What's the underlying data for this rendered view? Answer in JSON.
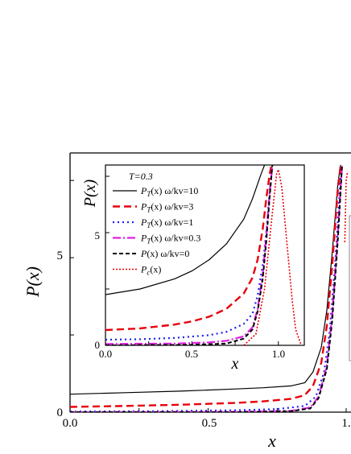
{
  "chart_data": [
    {
      "type": "line",
      "xlabel": "x",
      "ylabel": "P(x)",
      "xlim": [
        0,
        1.0
      ],
      "ylim": [
        0,
        8
      ],
      "xticks": [
        "0.0",
        "0.5",
        "1."
      ],
      "yticks": [
        "0",
        "5"
      ],
      "series": [
        {
          "key": "wkv10",
          "color": "#000000",
          "dash": "",
          "width": 1.2,
          "points": [
            [
              0,
              0.58
            ],
            [
              0.2,
              0.63
            ],
            [
              0.4,
              0.68
            ],
            [
              0.6,
              0.75
            ],
            [
              0.7,
              0.79
            ],
            [
              0.8,
              0.85
            ],
            [
              0.85,
              0.95
            ],
            [
              0.88,
              1.3
            ],
            [
              0.91,
              2.1
            ],
            [
              0.93,
              3.3
            ],
            [
              0.95,
              5.2
            ],
            [
              0.97,
              7.4
            ],
            [
              0.98,
              8
            ]
          ]
        },
        {
          "key": "wkv3",
          "color": "#e8000b",
          "dash": "9,5",
          "width": 2.4,
          "points": [
            [
              0,
              0.17
            ],
            [
              0.2,
              0.2
            ],
            [
              0.4,
              0.24
            ],
            [
              0.6,
              0.3
            ],
            [
              0.7,
              0.35
            ],
            [
              0.8,
              0.43
            ],
            [
              0.85,
              0.55
            ],
            [
              0.88,
              0.85
            ],
            [
              0.91,
              1.6
            ],
            [
              0.93,
              2.8
            ],
            [
              0.95,
              4.8
            ],
            [
              0.97,
              7.2
            ],
            [
              0.98,
              8
            ]
          ]
        },
        {
          "key": "wkv1",
          "color": "#1f1fef",
          "dash": "2,4",
          "width": 2.2,
          "points": [
            [
              0,
              0.02
            ],
            [
              0.3,
              0.03
            ],
            [
              0.6,
              0.06
            ],
            [
              0.75,
              0.1
            ],
            [
              0.85,
              0.2
            ],
            [
              0.89,
              0.5
            ],
            [
              0.92,
              1.3
            ],
            [
              0.94,
              2.6
            ],
            [
              0.96,
              4.8
            ],
            [
              0.98,
              7.6
            ],
            [
              0.985,
              8
            ]
          ]
        },
        {
          "key": "wkv03",
          "color": "#e020e0",
          "dash": "10,3,2,3",
          "width": 2.2,
          "points": [
            [
              0,
              0.0
            ],
            [
              0.6,
              0.01
            ],
            [
              0.8,
              0.04
            ],
            [
              0.87,
              0.15
            ],
            [
              0.9,
              0.5
            ],
            [
              0.93,
              1.5
            ],
            [
              0.95,
              3.2
            ],
            [
              0.97,
              5.8
            ],
            [
              0.985,
              8
            ]
          ]
        },
        {
          "key": "wkv0",
          "color": "#000000",
          "dash": "5,3",
          "width": 2.0,
          "points": [
            [
              0,
              0.0
            ],
            [
              0.6,
              0.0
            ],
            [
              0.8,
              0.03
            ],
            [
              0.87,
              0.12
            ],
            [
              0.9,
              0.45
            ],
            [
              0.93,
              1.4
            ],
            [
              0.95,
              3.0
            ],
            [
              0.97,
              5.6
            ],
            [
              0.985,
              8
            ]
          ]
        },
        {
          "key": "pc",
          "color": "#e8000b",
          "dash": "2,2",
          "width": 1.6,
          "points": [
            [
              0.995,
              5.5
            ],
            [
              1.0,
              7.5
            ],
            [
              1.005,
              7.8
            ]
          ]
        }
      ]
    },
    {
      "type": "line",
      "title": "T=0.3",
      "xlabel": "x",
      "ylabel": "P(x)",
      "xlim": [
        0,
        1.15
      ],
      "ylim": [
        0,
        8
      ],
      "xticks": [
        "0.0",
        "0.5",
        "1.0"
      ],
      "yticks": [
        "0",
        "5"
      ],
      "legend": {
        "placement": "left",
        "entries": [
          {
            "key": "wkv10",
            "prefix": "P",
            "sub": "T",
            "rest": "(x) ω/kv=10"
          },
          {
            "key": "wkv3",
            "prefix": "P",
            "sub": "T",
            "rest": "(x) ω/kv=3"
          },
          {
            "key": "wkv1",
            "prefix": "P",
            "sub": "T",
            "rest": "(x) ω/kv=1"
          },
          {
            "key": "wkv03",
            "prefix": "P",
            "sub": "T",
            "rest": "(x) ω/kv=0.3"
          },
          {
            "key": "wkv0",
            "prefix": "P",
            "sub": "",
            "rest": "(x) ω/kv=0"
          },
          {
            "key": "pc",
            "prefix": "P",
            "sub": "c",
            "rest": "(x)"
          }
        ]
      },
      "series": [
        {
          "key": "wkv10",
          "color": "#000000",
          "dash": "",
          "width": 1.2,
          "points": [
            [
              0,
              2.25
            ],
            [
              0.2,
              2.5
            ],
            [
              0.4,
              2.95
            ],
            [
              0.5,
              3.3
            ],
            [
              0.6,
              3.8
            ],
            [
              0.7,
              4.5
            ],
            [
              0.8,
              5.6
            ],
            [
              0.85,
              6.5
            ],
            [
              0.9,
              7.6
            ],
            [
              0.92,
              8
            ]
          ]
        },
        {
          "key": "wkv3",
          "color": "#e8000b",
          "dash": "9,5",
          "width": 2.4,
          "points": [
            [
              0,
              0.68
            ],
            [
              0.2,
              0.75
            ],
            [
              0.4,
              0.92
            ],
            [
              0.5,
              1.06
            ],
            [
              0.6,
              1.27
            ],
            [
              0.7,
              1.62
            ],
            [
              0.8,
              2.3
            ],
            [
              0.85,
              3.0
            ],
            [
              0.88,
              3.8
            ],
            [
              0.91,
              5.2
            ],
            [
              0.93,
              6.5
            ],
            [
              0.95,
              7.6
            ],
            [
              0.96,
              8
            ]
          ]
        },
        {
          "key": "wkv1",
          "color": "#1f1fef",
          "dash": "2,4",
          "width": 2.2,
          "points": [
            [
              0,
              0.25
            ],
            [
              0.2,
              0.27
            ],
            [
              0.4,
              0.33
            ],
            [
              0.6,
              0.45
            ],
            [
              0.7,
              0.6
            ],
            [
              0.8,
              0.95
            ],
            [
              0.85,
              1.4
            ],
            [
              0.88,
              2.2
            ],
            [
              0.91,
              3.6
            ],
            [
              0.93,
              5.0
            ],
            [
              0.95,
              6.8
            ],
            [
              0.965,
              8
            ]
          ]
        },
        {
          "key": "wkv03",
          "color": "#e020e0",
          "dash": "10,3,2,3",
          "width": 2.2,
          "points": [
            [
              0,
              0.06
            ],
            [
              0.4,
              0.08
            ],
            [
              0.6,
              0.13
            ],
            [
              0.7,
              0.2
            ],
            [
              0.8,
              0.4
            ],
            [
              0.85,
              0.8
            ],
            [
              0.88,
              1.6
            ],
            [
              0.91,
              3.2
            ],
            [
              0.93,
              4.8
            ],
            [
              0.95,
              6.8
            ],
            [
              0.965,
              8
            ]
          ]
        },
        {
          "key": "wkv0",
          "color": "#000000",
          "dash": "5,3",
          "width": 2.0,
          "points": [
            [
              0,
              0.0
            ],
            [
              0.5,
              0.02
            ],
            [
              0.7,
              0.08
            ],
            [
              0.8,
              0.3
            ],
            [
              0.85,
              0.7
            ],
            [
              0.88,
              1.5
            ],
            [
              0.91,
              3.0
            ],
            [
              0.93,
              4.6
            ],
            [
              0.95,
              6.6
            ],
            [
              0.965,
              8
            ]
          ]
        },
        {
          "key": "pc",
          "color": "#e8000b",
          "dash": "2,2",
          "width": 1.6,
          "points": [
            [
              0.8,
              0.0
            ],
            [
              0.87,
              0.5
            ],
            [
              0.92,
              2.5
            ],
            [
              0.96,
              5.5
            ],
            [
              0.99,
              7.6
            ],
            [
              1.0,
              7.8
            ],
            [
              1.02,
              7.0
            ],
            [
              1.05,
              4.5
            ],
            [
              1.08,
              2.0
            ],
            [
              1.1,
              0.7
            ],
            [
              1.13,
              0.05
            ]
          ]
        }
      ]
    }
  ]
}
